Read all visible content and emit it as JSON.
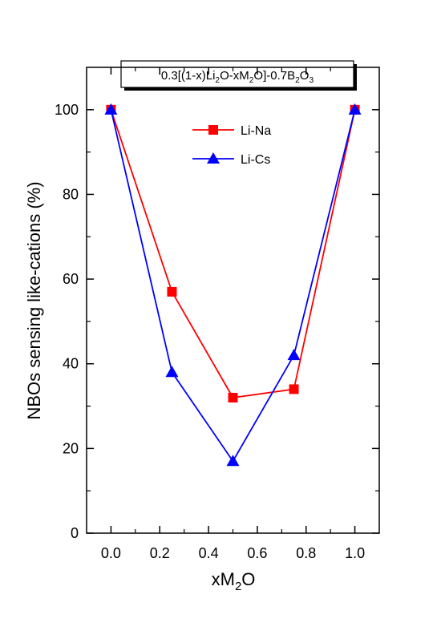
{
  "chart_data": {
    "type": "line",
    "title_parts": [
      {
        "t": "0.3[(1-x)Li",
        "sub": false
      },
      {
        "t": "2",
        "sub": true
      },
      {
        "t": "O-xM",
        "sub": false
      },
      {
        "t": "2",
        "sub": true
      },
      {
        "t": "O]-0.7B",
        "sub": false
      },
      {
        "t": "2",
        "sub": true
      },
      {
        "t": "O",
        "sub": false
      },
      {
        "t": "3",
        "sub": true
      }
    ],
    "xlabel_parts": [
      {
        "t": "xM",
        "sub": false
      },
      {
        "t": "2",
        "sub": true
      },
      {
        "t": "O",
        "sub": false
      }
    ],
    "ylabel": "NBOs sensing like-cations (%)",
    "xlim": [
      -0.1,
      1.1
    ],
    "ylim": [
      0,
      110
    ],
    "xticks": [
      "0.0",
      "0.2",
      "0.4",
      "0.6",
      "0.8",
      "1.0"
    ],
    "yticks": [
      "0",
      "20",
      "40",
      "60",
      "80",
      "100"
    ],
    "x": [
      0.0,
      0.25,
      0.5,
      0.75,
      1.0
    ],
    "series": [
      {
        "name": "Li-Na",
        "color": "#ff0000",
        "marker": "square",
        "values": [
          100,
          57,
          32,
          34,
          100
        ]
      },
      {
        "name": "Li-Cs",
        "color": "#0000ff",
        "marker": "triangle",
        "values": [
          100,
          38,
          17,
          42,
          100
        ]
      }
    ],
    "legend_position": "top-center",
    "grid": false
  }
}
